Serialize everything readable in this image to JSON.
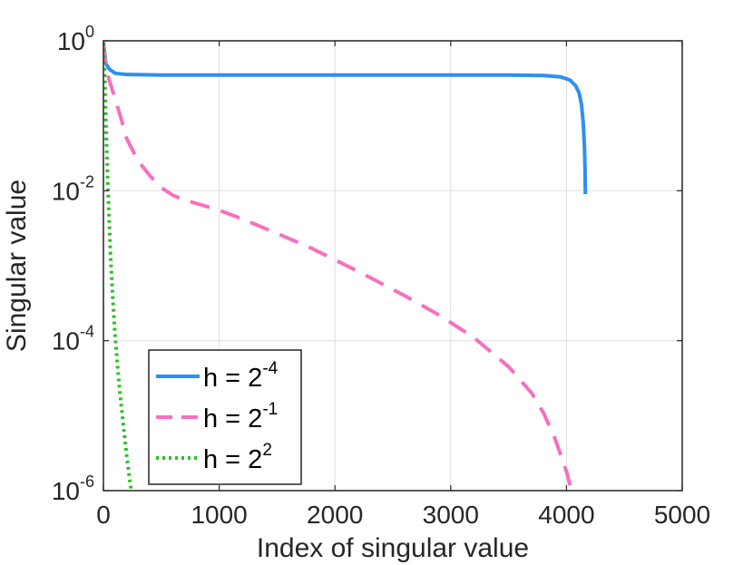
{
  "chart_data": {
    "type": "line",
    "title": "",
    "xlabel": "Index of singular value",
    "ylabel": "Singular value",
    "xlim": [
      0,
      5000
    ],
    "ylim": [
      1e-06,
      1
    ],
    "yscale": "log",
    "grid": true,
    "legend_position": "bottom-left",
    "x_ticks": [
      {
        "value": 0,
        "label": "0"
      },
      {
        "value": 1000,
        "label": "1000"
      },
      {
        "value": 2000,
        "label": "2000"
      },
      {
        "value": 3000,
        "label": "3000"
      },
      {
        "value": 4000,
        "label": "4000"
      },
      {
        "value": 5000,
        "label": "5000"
      }
    ],
    "y_ticks": [
      {
        "value": 1,
        "base": "10",
        "exp": "0"
      },
      {
        "value": 0.01,
        "base": "10",
        "exp": "-2"
      },
      {
        "value": 0.0001,
        "base": "10",
        "exp": "-4"
      },
      {
        "value": 1e-06,
        "base": "10",
        "exp": "-6"
      }
    ],
    "series": [
      {
        "name": "h = 2^-4",
        "legend_base": "h = 2",
        "legend_exp": "-4",
        "color": "#2e8ff0",
        "style": "solid",
        "x": [
          1,
          20,
          50,
          100,
          200,
          500,
          1000,
          2000,
          3000,
          3500,
          3800,
          3950,
          4030,
          4080,
          4110,
          4130,
          4145,
          4155,
          4160,
          4163
        ],
        "y": [
          0.95,
          0.5,
          0.42,
          0.37,
          0.355,
          0.35,
          0.35,
          0.35,
          0.35,
          0.35,
          0.345,
          0.33,
          0.3,
          0.25,
          0.2,
          0.14,
          0.08,
          0.04,
          0.02,
          0.009
        ]
      },
      {
        "name": "h = 2^-1",
        "legend_base": "h = 2",
        "legend_exp": "-1",
        "color": "#f76fbe",
        "style": "dashed",
        "x": [
          1,
          20,
          50,
          100,
          150,
          200,
          300,
          400,
          500,
          600,
          700,
          800,
          1000,
          1200,
          1500,
          1800,
          2000,
          2300,
          2600,
          2900,
          3200,
          3500,
          3700,
          3800,
          3900,
          3950,
          4000,
          4030,
          4050
        ],
        "y": [
          0.9,
          0.45,
          0.3,
          0.17,
          0.095,
          0.05,
          0.025,
          0.016,
          0.011,
          0.0087,
          0.0075,
          0.0068,
          0.0055,
          0.0042,
          0.0027,
          0.0017,
          0.0012,
          0.0007,
          0.0004,
          0.00022,
          0.00011,
          4.5e-05,
          2e-05,
          1.1e-05,
          5e-06,
          3e-06,
          1.8e-06,
          1.2e-06,
          8.5e-07
        ]
      },
      {
        "name": "h = 2^2",
        "legend_base": "h = 2",
        "legend_exp": "2",
        "color": "#2ec028",
        "style": "dotted",
        "x": [
          1,
          5,
          10,
          15,
          20,
          30,
          40,
          50,
          60,
          80,
          100,
          120,
          140,
          170,
          200,
          230,
          260
        ],
        "y": [
          0.95,
          0.7,
          0.4,
          0.2,
          0.1,
          0.03,
          0.01,
          0.004,
          0.0015,
          0.0004,
          0.00012,
          5e-05,
          2.2e-05,
          8e-06,
          3e-06,
          1.3e-06,
          6e-07
        ]
      }
    ]
  }
}
